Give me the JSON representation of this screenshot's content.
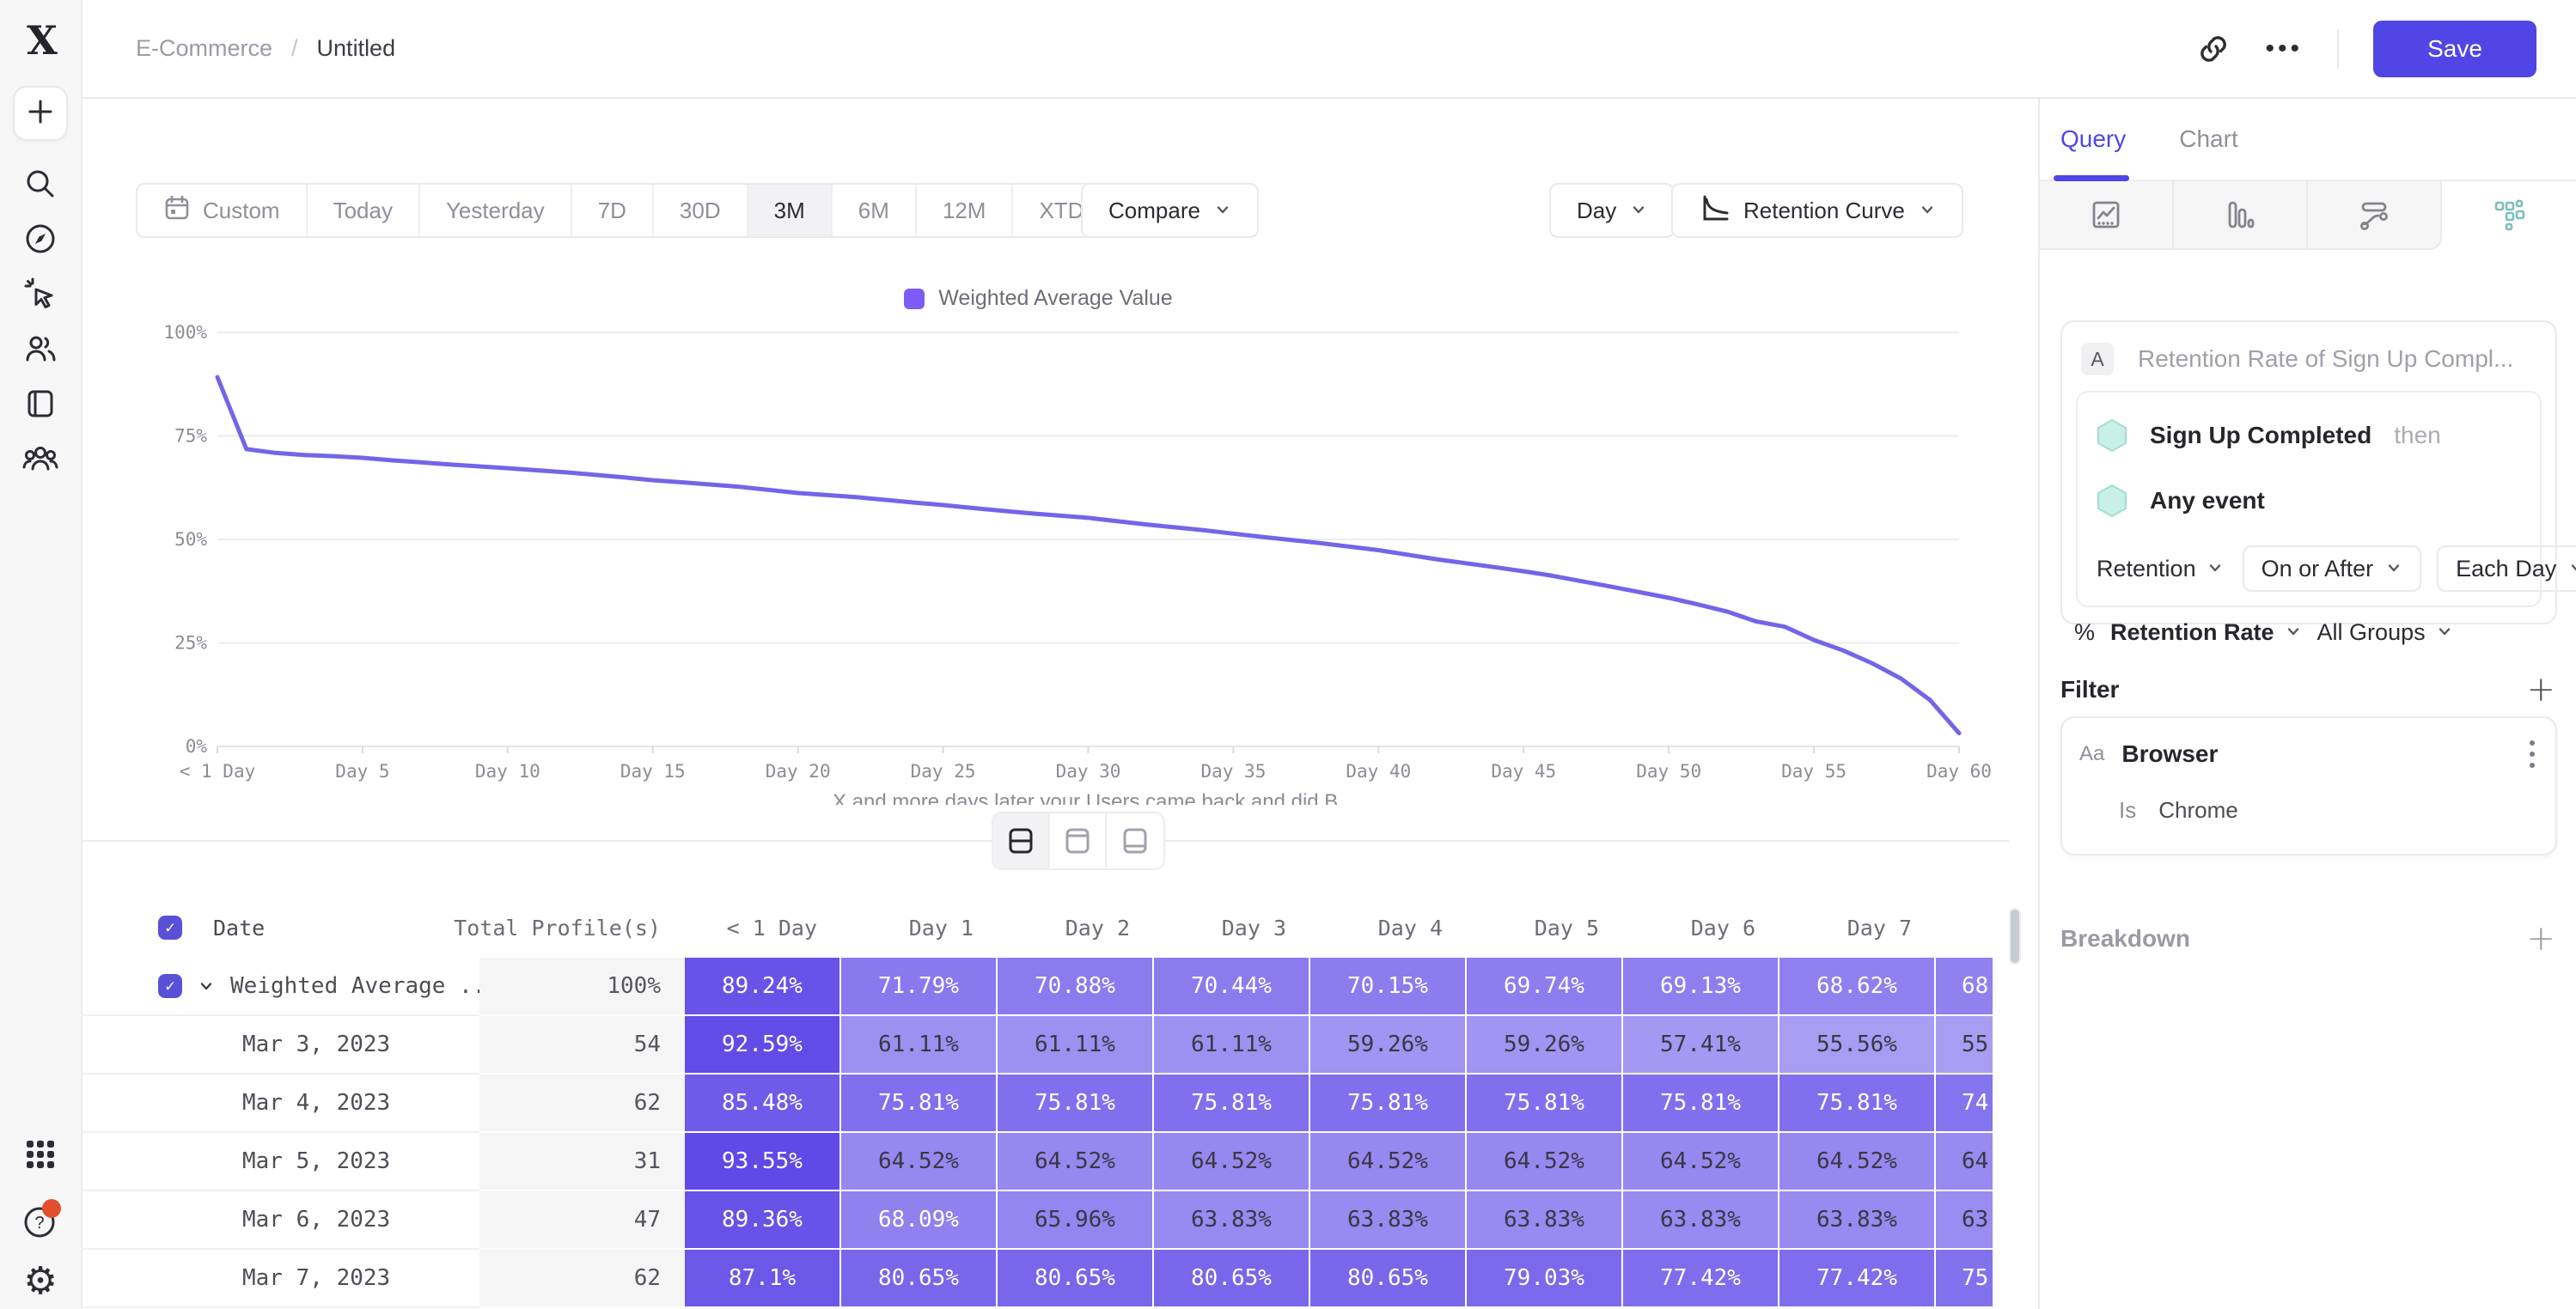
{
  "breadcrumb": {
    "workspace": "E-Commerce",
    "separator": "/",
    "current": "Untitled"
  },
  "topbar": {
    "save_label": "Save"
  },
  "toolbar": {
    "ranges": [
      "Custom",
      "Today",
      "Yesterday",
      "7D",
      "30D",
      "3M",
      "6M",
      "12M",
      "XTD"
    ],
    "selected_range": "3M",
    "compare_label": "Compare",
    "granularity_label": "Day",
    "chart_type_label": "Retention Curve"
  },
  "legend": {
    "label": "Weighted Average Value",
    "swatch_color": "#7b5cf5"
  },
  "chart_data": {
    "type": "line",
    "title": "",
    "series_name": "Weighted Average Value",
    "line_color": "#7365e9",
    "ylim": [
      0,
      100
    ],
    "yticks": [
      "100%",
      "75%",
      "50%",
      "25%",
      "0%"
    ],
    "ytick_values": [
      100,
      75,
      50,
      25,
      0
    ],
    "xticks": [
      "< 1 Day",
      "Day 5",
      "Day 10",
      "Day 15",
      "Day 20",
      "Day 25",
      "Day 30",
      "Day 35",
      "Day 40",
      "Day 45",
      "Day 50",
      "Day 55",
      "Day 60"
    ],
    "xtick_days": [
      0,
      5,
      10,
      15,
      20,
      25,
      30,
      35,
      40,
      45,
      50,
      55,
      60
    ],
    "xlabel": "X and more days later your Users came back and did B.",
    "points": [
      [
        0,
        89.2
      ],
      [
        1,
        71.8
      ],
      [
        2,
        70.9
      ],
      [
        3,
        70.4
      ],
      [
        4,
        70.1
      ],
      [
        5,
        69.7
      ],
      [
        6,
        69.1
      ],
      [
        7,
        68.6
      ],
      [
        8,
        68.1
      ],
      [
        10,
        67.2
      ],
      [
        12,
        66.2
      ],
      [
        14,
        65.0
      ],
      [
        15,
        64.3
      ],
      [
        16,
        63.8
      ],
      [
        18,
        62.7
      ],
      [
        20,
        61.2
      ],
      [
        22,
        60.2
      ],
      [
        24,
        58.9
      ],
      [
        25,
        58.3
      ],
      [
        26,
        57.6
      ],
      [
        28,
        56.3
      ],
      [
        30,
        55.2
      ],
      [
        32,
        53.6
      ],
      [
        34,
        52.2
      ],
      [
        35,
        51.4
      ],
      [
        36,
        50.6
      ],
      [
        38,
        49.1
      ],
      [
        40,
        47.4
      ],
      [
        42,
        45.2
      ],
      [
        44,
        43.3
      ],
      [
        45,
        42.3
      ],
      [
        46,
        41.2
      ],
      [
        48,
        38.6
      ],
      [
        50,
        35.9
      ],
      [
        51,
        34.3
      ],
      [
        52,
        32.6
      ],
      [
        53,
        30.2
      ],
      [
        54,
        28.9
      ],
      [
        55,
        25.7
      ],
      [
        56,
        23.2
      ],
      [
        57,
        20.1
      ],
      [
        58,
        16.4
      ],
      [
        59,
        11.2
      ],
      [
        60,
        3.2
      ]
    ]
  },
  "table": {
    "columns": [
      "Date",
      "Total Profile(s)",
      "< 1 Day",
      "Day 1",
      "Day 2",
      "Day 3",
      "Day 4",
      "Day 5",
      "Day 6",
      "Day 7"
    ],
    "rows": [
      {
        "label": "Weighted Average ...",
        "checked": true,
        "expandable": true,
        "total": "100%",
        "values": [
          "89.24%",
          "71.79%",
          "70.88%",
          "70.44%",
          "70.15%",
          "69.74%",
          "69.13%",
          "68.62%"
        ],
        "partial": "68"
      },
      {
        "label": "Mar 3, 2023",
        "total": "54",
        "values": [
          "92.59%",
          "61.11%",
          "61.11%",
          "61.11%",
          "59.26%",
          "59.26%",
          "57.41%",
          "55.56%"
        ],
        "partial": "55"
      },
      {
        "label": "Mar 4, 2023",
        "total": "62",
        "values": [
          "85.48%",
          "75.81%",
          "75.81%",
          "75.81%",
          "75.81%",
          "75.81%",
          "75.81%",
          "75.81%"
        ],
        "partial": "74"
      },
      {
        "label": "Mar 5, 2023",
        "total": "31",
        "values": [
          "93.55%",
          "64.52%",
          "64.52%",
          "64.52%",
          "64.52%",
          "64.52%",
          "64.52%",
          "64.52%"
        ],
        "partial": "64"
      },
      {
        "label": "Mar 6, 2023",
        "total": "47",
        "values": [
          "89.36%",
          "68.09%",
          "65.96%",
          "63.83%",
          "63.83%",
          "63.83%",
          "63.83%",
          "63.83%"
        ],
        "partial": "63"
      },
      {
        "label": "Mar 7, 2023",
        "total": "62",
        "values": [
          "87.1%",
          "80.65%",
          "80.65%",
          "80.65%",
          "80.65%",
          "79.03%",
          "77.42%",
          "77.42%"
        ],
        "partial": "75"
      }
    ],
    "cell_color_dark": "#5e49e7",
    "cell_color_light": "#a99df3"
  },
  "panel": {
    "tabs": [
      {
        "label": "Query",
        "active": true
      },
      {
        "label": "Chart",
        "active": false
      }
    ],
    "query": {
      "badge": "A",
      "title_placeholder": "Retention Rate of Sign Up Compl...",
      "first_event": "Sign Up Completed",
      "then_label": "then",
      "return_event": "Any event",
      "mode_dropdown": "Retention",
      "timing_dropdown": "On or After",
      "interval_dropdown": "Each Day",
      "measure_prefix": "%",
      "measure_dropdown": "Retention Rate",
      "groups_dropdown": "All Groups"
    },
    "filter": {
      "heading": "Filter",
      "property_type": "Aa",
      "property": "Browser",
      "operator": "Is",
      "value": "Chrome"
    },
    "breakdown": {
      "heading": "Breakdown"
    }
  },
  "colors": {
    "accent": "#4f46e5",
    "teal_icon": "#7bbfb9",
    "hex_fill": "#c8efe8",
    "hex_stroke": "#a3ddd2"
  }
}
